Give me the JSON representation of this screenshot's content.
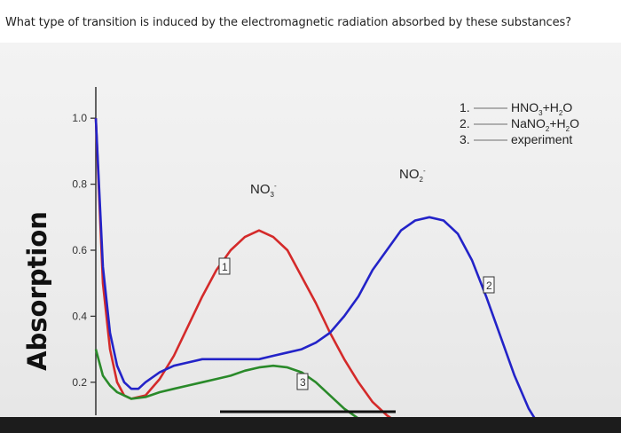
{
  "question": "What type of transition is induced by the electromagnetic radiation absorbed by these substances?",
  "chart_data": {
    "type": "line",
    "ylabel": "Absorption",
    "xlabel": "",
    "ylim": [
      0.1,
      1.0
    ],
    "yticks": [
      {
        "label": "1.0",
        "value": 1.0
      },
      {
        "label": "0.8",
        "value": 0.8
      },
      {
        "label": "0.6",
        "value": 0.6
      },
      {
        "label": "0.4",
        "value": 0.4
      },
      {
        "label": "0.2",
        "value": 0.2
      }
    ],
    "grid": false,
    "legend_position": "top-right",
    "legend": [
      {
        "num": "1.",
        "label": "HNO",
        "sub1": "3",
        "mid": "+H",
        "sub2": "2",
        "end": "O"
      },
      {
        "num": "2.",
        "label": "NaNO",
        "sub1": "2",
        "mid": "+H",
        "sub2": "2",
        "end": "O"
      },
      {
        "num": "3.",
        "label": "experiment",
        "sub1": "",
        "mid": "",
        "sub2": "",
        "end": ""
      }
    ],
    "annotations": {
      "peak1": {
        "text": "NO",
        "sub": "3",
        "sup": "-"
      },
      "peak2": {
        "text": "NO",
        "sub": "2",
        "sup": "-"
      },
      "box1": "1",
      "box2": "2",
      "box3": "3"
    },
    "series": [
      {
        "name": "1",
        "color": "#d42a2a",
        "x": [
          0,
          2,
          4,
          6,
          8,
          10,
          14,
          18,
          22,
          26,
          30,
          34,
          38,
          42,
          46,
          50,
          54,
          58,
          62,
          66,
          70,
          74,
          78,
          82,
          86,
          90,
          94,
          96
        ],
        "y": [
          1.0,
          0.5,
          0.3,
          0.2,
          0.16,
          0.15,
          0.16,
          0.21,
          0.28,
          0.37,
          0.46,
          0.54,
          0.6,
          0.64,
          0.66,
          0.64,
          0.6,
          0.52,
          0.44,
          0.35,
          0.27,
          0.2,
          0.14,
          0.1,
          0.07,
          0.04,
          0.02,
          0.01
        ]
      },
      {
        "name": "2",
        "color": "#2323c8",
        "x": [
          0,
          2,
          4,
          6,
          8,
          10,
          12,
          14,
          18,
          22,
          26,
          30,
          34,
          38,
          42,
          46,
          50,
          54,
          58,
          62,
          66,
          70,
          74,
          78,
          82,
          86,
          90,
          94,
          98,
          102,
          106,
          110,
          114,
          118,
          122,
          126
        ],
        "y": [
          1.0,
          0.55,
          0.35,
          0.25,
          0.2,
          0.18,
          0.18,
          0.2,
          0.23,
          0.25,
          0.26,
          0.27,
          0.27,
          0.27,
          0.27,
          0.27,
          0.28,
          0.29,
          0.3,
          0.32,
          0.35,
          0.4,
          0.46,
          0.54,
          0.6,
          0.66,
          0.69,
          0.7,
          0.69,
          0.65,
          0.57,
          0.46,
          0.34,
          0.22,
          0.12,
          0.05
        ]
      },
      {
        "name": "3",
        "color": "#2a8a2a",
        "x": [
          0,
          2,
          4,
          6,
          8,
          10,
          14,
          18,
          22,
          26,
          30,
          34,
          38,
          42,
          46,
          50,
          54,
          58,
          62,
          66,
          70,
          74,
          78
        ],
        "y": [
          0.3,
          0.22,
          0.19,
          0.17,
          0.16,
          0.15,
          0.155,
          0.17,
          0.18,
          0.19,
          0.2,
          0.21,
          0.22,
          0.235,
          0.245,
          0.25,
          0.245,
          0.23,
          0.2,
          0.16,
          0.12,
          0.09,
          0.06
        ]
      }
    ]
  }
}
